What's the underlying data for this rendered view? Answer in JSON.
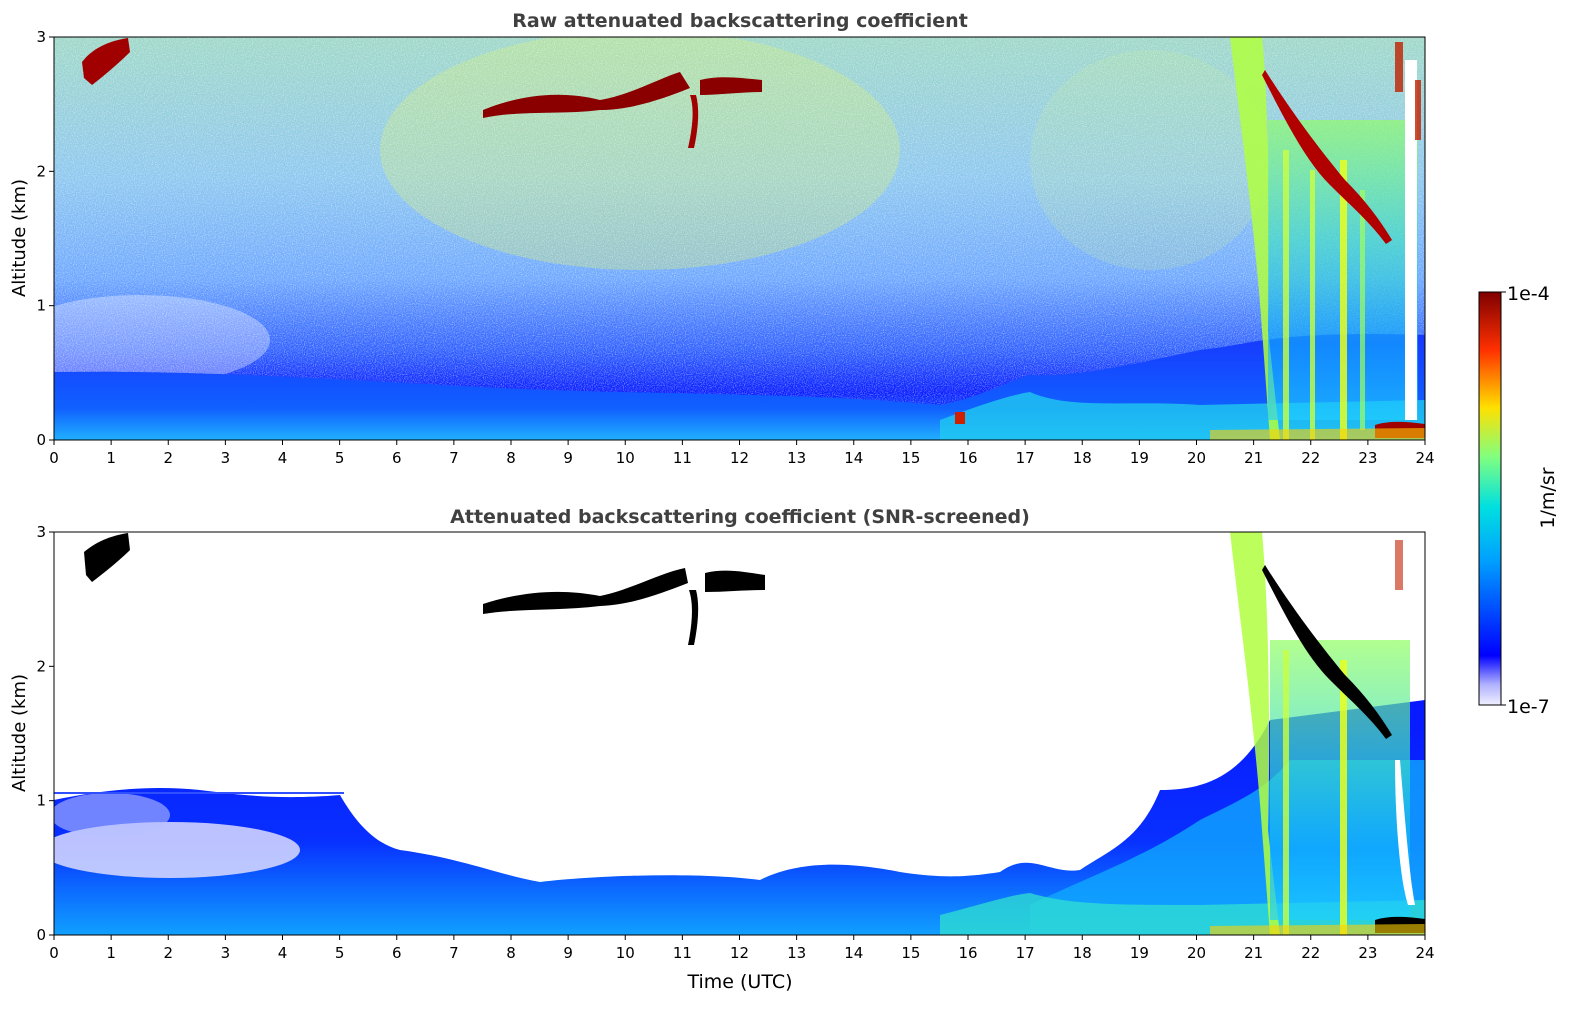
{
  "chart_data": [
    {
      "type": "heatmap",
      "title": "Raw attenuated backscattering coefficient",
      "xlabel": "",
      "ylabel": "Altitude (km)",
      "xlim": [
        0,
        24
      ],
      "ylim": [
        0,
        3
      ],
      "xticks": [
        "0",
        "1",
        "2",
        "3",
        "4",
        "5",
        "6",
        "7",
        "8",
        "9",
        "10",
        "11",
        "12",
        "13",
        "14",
        "15",
        "16",
        "17",
        "18",
        "19",
        "20",
        "21",
        "22",
        "23",
        "24"
      ],
      "yticks": [
        "0",
        "1",
        "2",
        "3"
      ],
      "features": [
        {
          "kind": "cloud",
          "x": [
            0.5,
            1.3
          ],
          "y": [
            2.55,
            2.95
          ],
          "level": "high"
        },
        {
          "kind": "cloud",
          "x": [
            7.5,
            12.4
          ],
          "y": [
            2.4,
            2.75
          ],
          "level": "high"
        },
        {
          "kind": "cloud",
          "x": [
            21.3,
            23.6
          ],
          "y": [
            1.5,
            2.75
          ],
          "level": "high"
        },
        {
          "kind": "boundary-layer",
          "x": [
            0,
            24
          ],
          "y": [
            0,
            0.5
          ],
          "level": "low"
        }
      ]
    },
    {
      "type": "heatmap",
      "title": "Attenuated backscattering coefficient (SNR-screened)",
      "xlabel": "Time (UTC)",
      "ylabel": "Altitude (km)",
      "xlim": [
        0,
        24
      ],
      "ylim": [
        0,
        3
      ],
      "xticks": [
        "0",
        "1",
        "2",
        "3",
        "4",
        "5",
        "6",
        "7",
        "8",
        "9",
        "10",
        "11",
        "12",
        "13",
        "14",
        "15",
        "16",
        "17",
        "18",
        "19",
        "20",
        "21",
        "22",
        "23",
        "24"
      ],
      "yticks": [
        "0",
        "1",
        "2",
        "3"
      ],
      "features": [
        {
          "kind": "cloud",
          "x": [
            0.5,
            1.3
          ],
          "y": [
            2.55,
            2.95
          ],
          "level": "saturated"
        },
        {
          "kind": "cloud",
          "x": [
            7.5,
            12.4
          ],
          "y": [
            2.4,
            2.75
          ],
          "level": "saturated"
        },
        {
          "kind": "boundary-layer",
          "x": [
            0,
            24
          ],
          "y": [
            0,
            0.5
          ],
          "level": "low"
        }
      ]
    }
  ],
  "colorbar": {
    "label": "1/m/sr",
    "min_label": "1e-7",
    "max_label": "1e-4",
    "colormap": "jet",
    "colors": [
      "#f0f0ff",
      "#0000ff",
      "#00b4ff",
      "#00ffd0",
      "#c8ff00",
      "#ffd000",
      "#ff3000",
      "#7f0000"
    ]
  }
}
